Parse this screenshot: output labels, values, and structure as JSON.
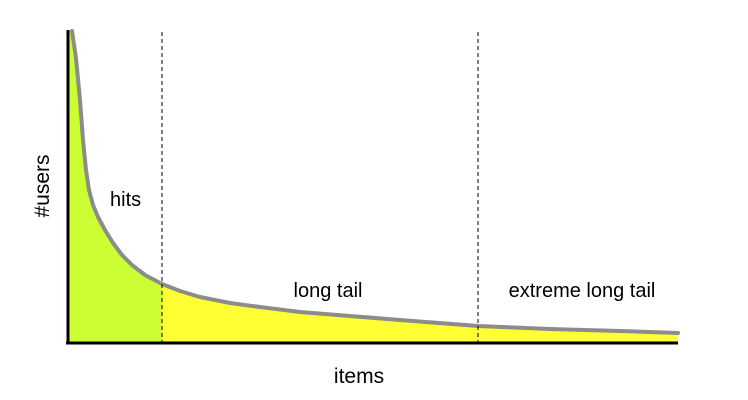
{
  "chart_data": {
    "type": "area",
    "title": "",
    "xlabel": "items",
    "ylabel": "#users",
    "grid": false,
    "legend": "none",
    "regions": [
      {
        "label": "hits",
        "color": "#ccff33"
      },
      {
        "label": "long tail",
        "color": "#ffff33"
      },
      {
        "label": "extreme long tail",
        "color": "#ffff33"
      }
    ],
    "curve_color": "#8c8c8c",
    "axis_color": "#000000"
  }
}
